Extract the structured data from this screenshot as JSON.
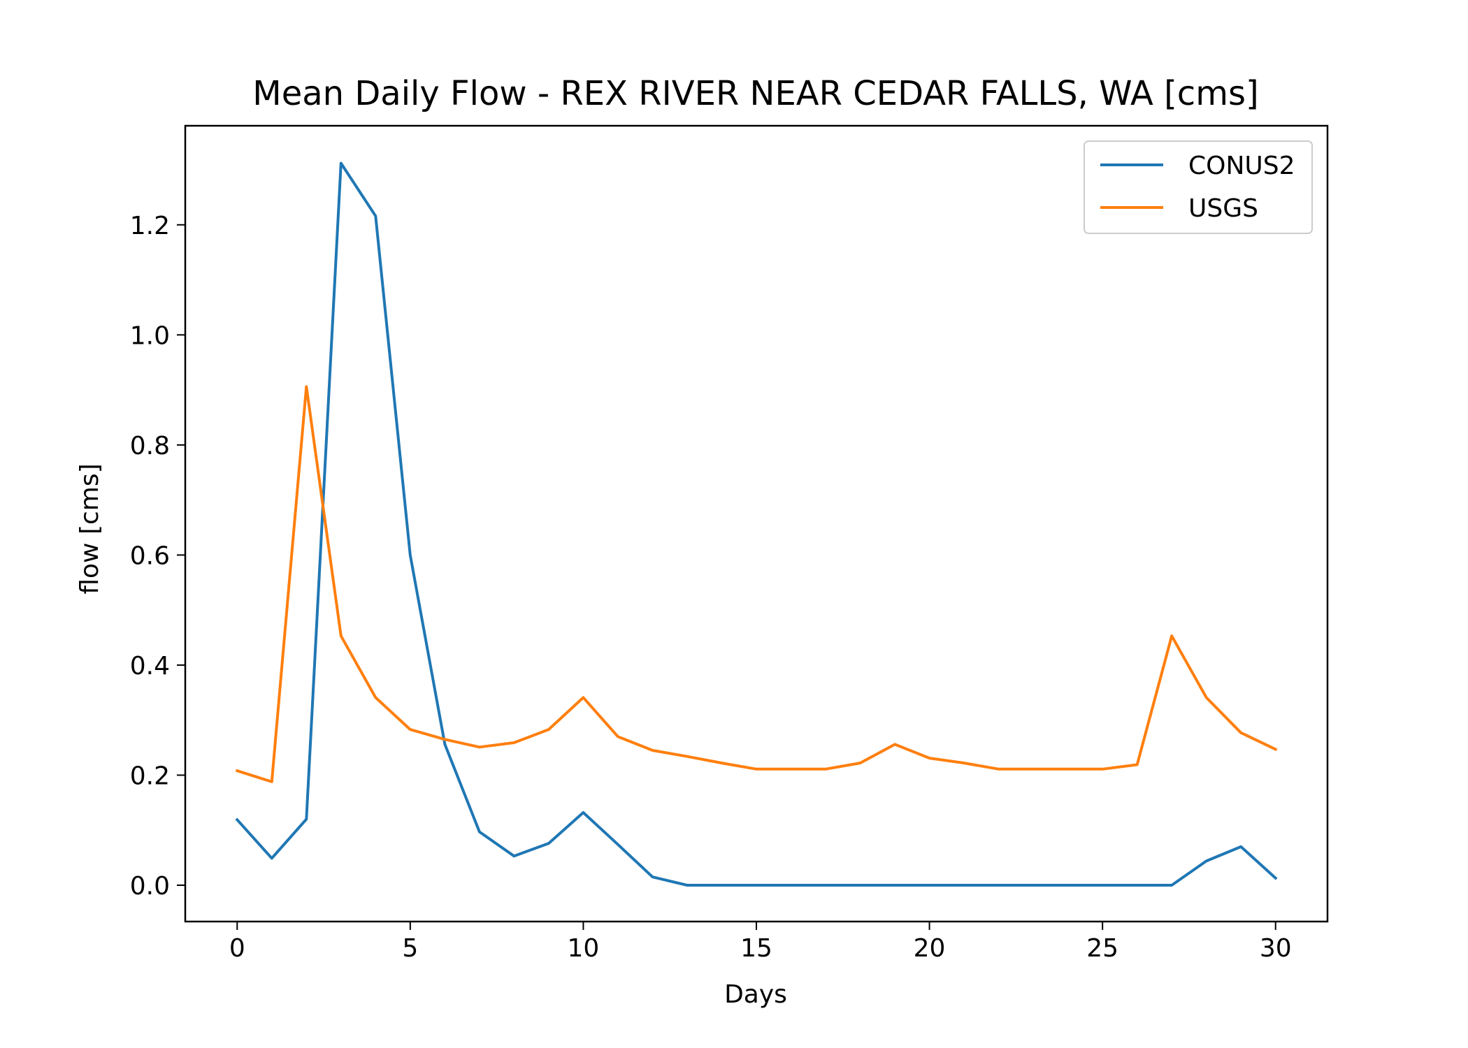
{
  "chart_data": {
    "type": "line",
    "title": "Mean Daily Flow - REX RIVER NEAR CEDAR FALLS, WA [cms]",
    "xlabel": "Days",
    "ylabel": "flow [cms]",
    "xlim": [
      -1.5,
      31.5
    ],
    "ylim": [
      -0.066,
      1.38
    ],
    "xticks": [
      0,
      5,
      10,
      15,
      20,
      25,
      30
    ],
    "yticks": [
      0.0,
      0.2,
      0.4,
      0.6,
      0.8,
      1.0,
      1.2
    ],
    "xtick_labels": [
      "0",
      "5",
      "10",
      "15",
      "20",
      "25",
      "30"
    ],
    "ytick_labels": [
      "0.0",
      "0.2",
      "0.4",
      "0.6",
      "0.8",
      "1.0",
      "1.2"
    ],
    "grid": false,
    "legend_position": "upper-right",
    "x": [
      0,
      1,
      2,
      3,
      4,
      5,
      6,
      7,
      8,
      9,
      10,
      11,
      12,
      13,
      14,
      15,
      16,
      17,
      18,
      19,
      20,
      21,
      22,
      23,
      24,
      25,
      26,
      27,
      28,
      29,
      30
    ],
    "series": [
      {
        "name": "CONUS2",
        "color": "#1f77b4",
        "values": [
          0.119,
          0.049,
          0.12,
          1.312,
          1.216,
          0.6,
          0.256,
          0.097,
          0.053,
          0.076,
          0.132,
          0.074,
          0.015,
          0.0,
          0.0,
          0.0,
          0.0,
          0.0,
          0.0,
          0.0,
          0.0,
          0.0,
          0.0,
          0.0,
          0.0,
          0.0,
          0.0,
          0.0,
          0.044,
          0.07,
          0.013
        ]
      },
      {
        "name": "USGS",
        "color": "#ff7f0e",
        "values": [
          0.208,
          0.188,
          0.906,
          0.453,
          0.341,
          0.283,
          0.265,
          0.251,
          0.259,
          0.283,
          0.341,
          0.27,
          0.245,
          0.234,
          0.222,
          0.211,
          0.211,
          0.211,
          0.222,
          0.256,
          0.231,
          0.222,
          0.211,
          0.211,
          0.211,
          0.211,
          0.219,
          0.453,
          0.341,
          0.277,
          0.247
        ]
      }
    ]
  }
}
